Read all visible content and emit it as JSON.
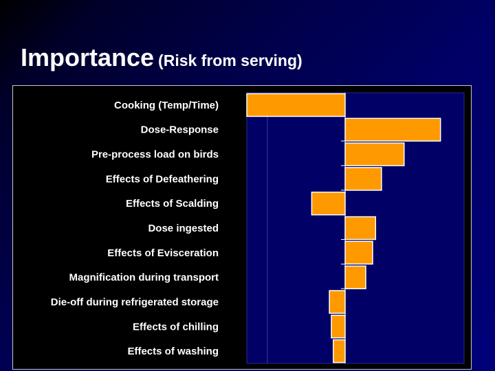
{
  "slide": {
    "title_main": "Importance",
    "title_sub": "(Risk from serving)"
  },
  "colors": {
    "bar": "#ff9900",
    "plot_bg": "#000066",
    "panel_bg": "#000000",
    "label": "#ffffff"
  },
  "chart_data": {
    "type": "bar",
    "orientation": "horizontal",
    "title": "",
    "xlabel": "",
    "ylabel": "",
    "xlim": [
      -1,
      1.2
    ],
    "grid": false,
    "legend": "none",
    "categories": [
      "Cooking (Temp/Time)",
      "Dose-Response",
      "Pre-process load on birds",
      "Effects of Defeathering",
      "Effects of Scalding",
      "Dose ingested",
      "Effects of Evisceration",
      "Magnification during transport",
      "Die-off during refrigerated storage",
      "Effects of chilling",
      "Effects of washing"
    ],
    "values": [
      -1.0,
      0.97,
      0.6,
      0.37,
      -0.34,
      0.31,
      0.28,
      0.21,
      -0.16,
      -0.14,
      -0.12
    ]
  }
}
